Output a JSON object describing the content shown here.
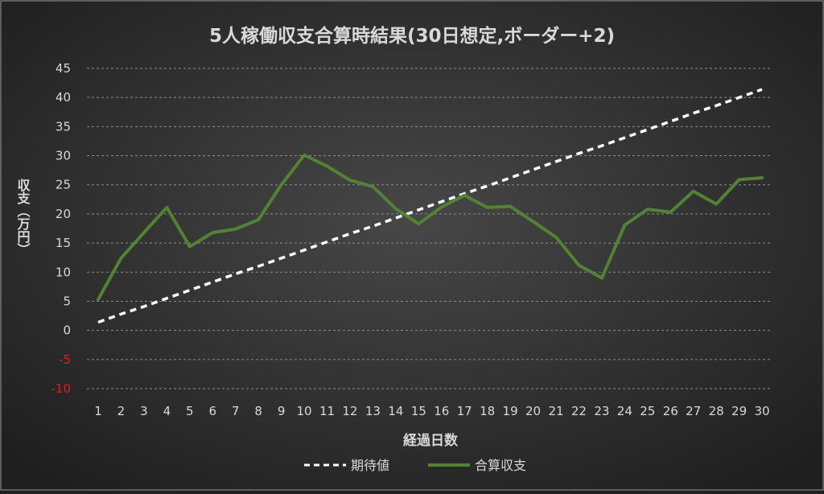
{
  "chart_data": {
    "type": "line",
    "title": "5人稼働収支合算時結果(30日想定,ボーダー+2)",
    "xlabel": "経過日数",
    "ylabel": "収支（万円）",
    "categories": [
      "1",
      "2",
      "3",
      "4",
      "5",
      "6",
      "7",
      "8",
      "9",
      "10",
      "11",
      "12",
      "13",
      "14",
      "15",
      "16",
      "17",
      "18",
      "19",
      "20",
      "21",
      "22",
      "23",
      "24",
      "25",
      "26",
      "27",
      "28",
      "29",
      "30"
    ],
    "ylim": [
      -10,
      45
    ],
    "yticks": [
      "-10",
      "-5",
      "0",
      "5",
      "10",
      "15",
      "20",
      "25",
      "30",
      "35",
      "40",
      "45"
    ],
    "grid": true,
    "legend_position": "bottom",
    "series": [
      {
        "name": "期待値",
        "style": "dashed",
        "color": "#ffffff",
        "values": [
          1.4,
          2.8,
          4.1,
          5.5,
          6.9,
          8.3,
          9.7,
          11.0,
          12.4,
          13.8,
          15.2,
          16.6,
          17.9,
          19.3,
          20.7,
          22.1,
          23.5,
          24.8,
          26.2,
          27.6,
          29.0,
          30.4,
          31.7,
          33.1,
          34.5,
          35.9,
          37.3,
          38.6,
          40.0,
          41.4
        ]
      },
      {
        "name": "合算収支",
        "style": "solid",
        "color": "#548235",
        "values": [
          5.3,
          12.4,
          16.8,
          21.1,
          14.4,
          16.8,
          17.4,
          19.0,
          25.0,
          30.1,
          28.2,
          25.8,
          24.7,
          20.9,
          18.3,
          21.2,
          23.2,
          21.1,
          21.3,
          18.7,
          16.0,
          11.2,
          9.0,
          18.1,
          20.8,
          20.3,
          23.9,
          21.7,
          25.9,
          26.2
        ]
      }
    ],
    "colors": {
      "background": "#1f1f1f",
      "text": "#d9d9d9",
      "title": "#d9d9d9",
      "negative_tick": "#e02020",
      "grid": "#8c8c8c"
    }
  }
}
